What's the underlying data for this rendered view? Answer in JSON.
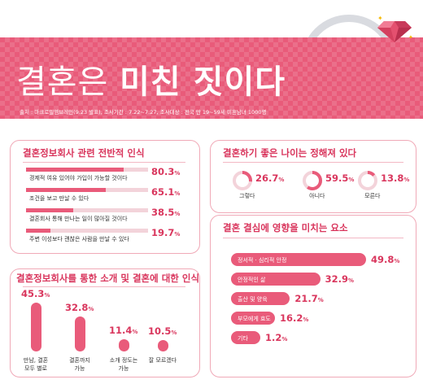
{
  "header": {
    "title_normal": "결혼은",
    "title_bold": "미친 짓이다",
    "source": "출처 : 마크로밀엠브레인(9.23 발표),  조사기간 : 7.22~7.27,  조사대상 : 전국 만 19~59세 미혼남녀 1000명"
  },
  "colors": {
    "accent": "#e95b7a",
    "accent_dark": "#d9365d",
    "light": "#f7c6d1",
    "track": "#f3d3da"
  },
  "panel1": {
    "title": "결혼정보회사 관련 전반적 인식"
  },
  "panel2": {
    "title": "결혼정보회사를 통한 소개 및 결혼에 대한 인식"
  },
  "panel3": {
    "title": "결혼하기 좋은 나이는 정해져 있다"
  },
  "panel4": {
    "title": "결혼 결심에 영향을 미치는 요소"
  },
  "chart_data": [
    {
      "type": "bar",
      "title": "결혼정보회사 관련 전반적 인식",
      "categories": [
        "경제적 여유 있어야 가입이 가능할 것이다",
        "조건을 보고 만날 수 있다",
        "결혼회사 통해 만나는 일이 많아질 것이다",
        "주변 이성보다 괜찮은 사람을 만날 수 있다"
      ],
      "values": [
        80.3,
        65.1,
        38.5,
        19.7
      ],
      "value_labels": [
        "80.3",
        "65.1",
        "38.5",
        "19.7"
      ],
      "unit": "%"
    },
    {
      "type": "bar",
      "title": "결혼정보회사를 통한 소개 및 결혼에 대한 인식",
      "categories": [
        "만남, 결혼 모두 별로",
        "결혼까지 가능",
        "소개 정도는 가능",
        "잘 모르겠다"
      ],
      "category_lines": [
        [
          "만남, 결혼",
          "모두 별로"
        ],
        [
          "결혼까지",
          "가능"
        ],
        [
          "소개 정도는",
          "가능"
        ],
        [
          "잘 모르겠다"
        ]
      ],
      "values": [
        45.3,
        32.8,
        11.4,
        10.5
      ],
      "value_labels": [
        "45.3",
        "32.8",
        "11.4",
        "10.5"
      ],
      "unit": "%"
    },
    {
      "type": "pie",
      "title": "결혼하기 좋은 나이는 정해져 있다",
      "categories": [
        "그렇다",
        "아니다",
        "모른다"
      ],
      "values": [
        26.7,
        59.5,
        13.8
      ],
      "value_labels": [
        "26.7",
        "59.5",
        "13.8"
      ],
      "unit": "%"
    },
    {
      "type": "bar",
      "title": "결혼 결심에 영향을 미치는 요소",
      "categories": [
        "정서적 · 심리적 안정",
        "안정적인 삶",
        "출산 및 양육",
        "부모에게 효도",
        "기타"
      ],
      "values": [
        49.8,
        32.9,
        21.7,
        16.2,
        1.2
      ],
      "value_labels": [
        "49.8",
        "32.9",
        "21.7",
        "16.2",
        "1.2"
      ],
      "unit": "%"
    }
  ]
}
